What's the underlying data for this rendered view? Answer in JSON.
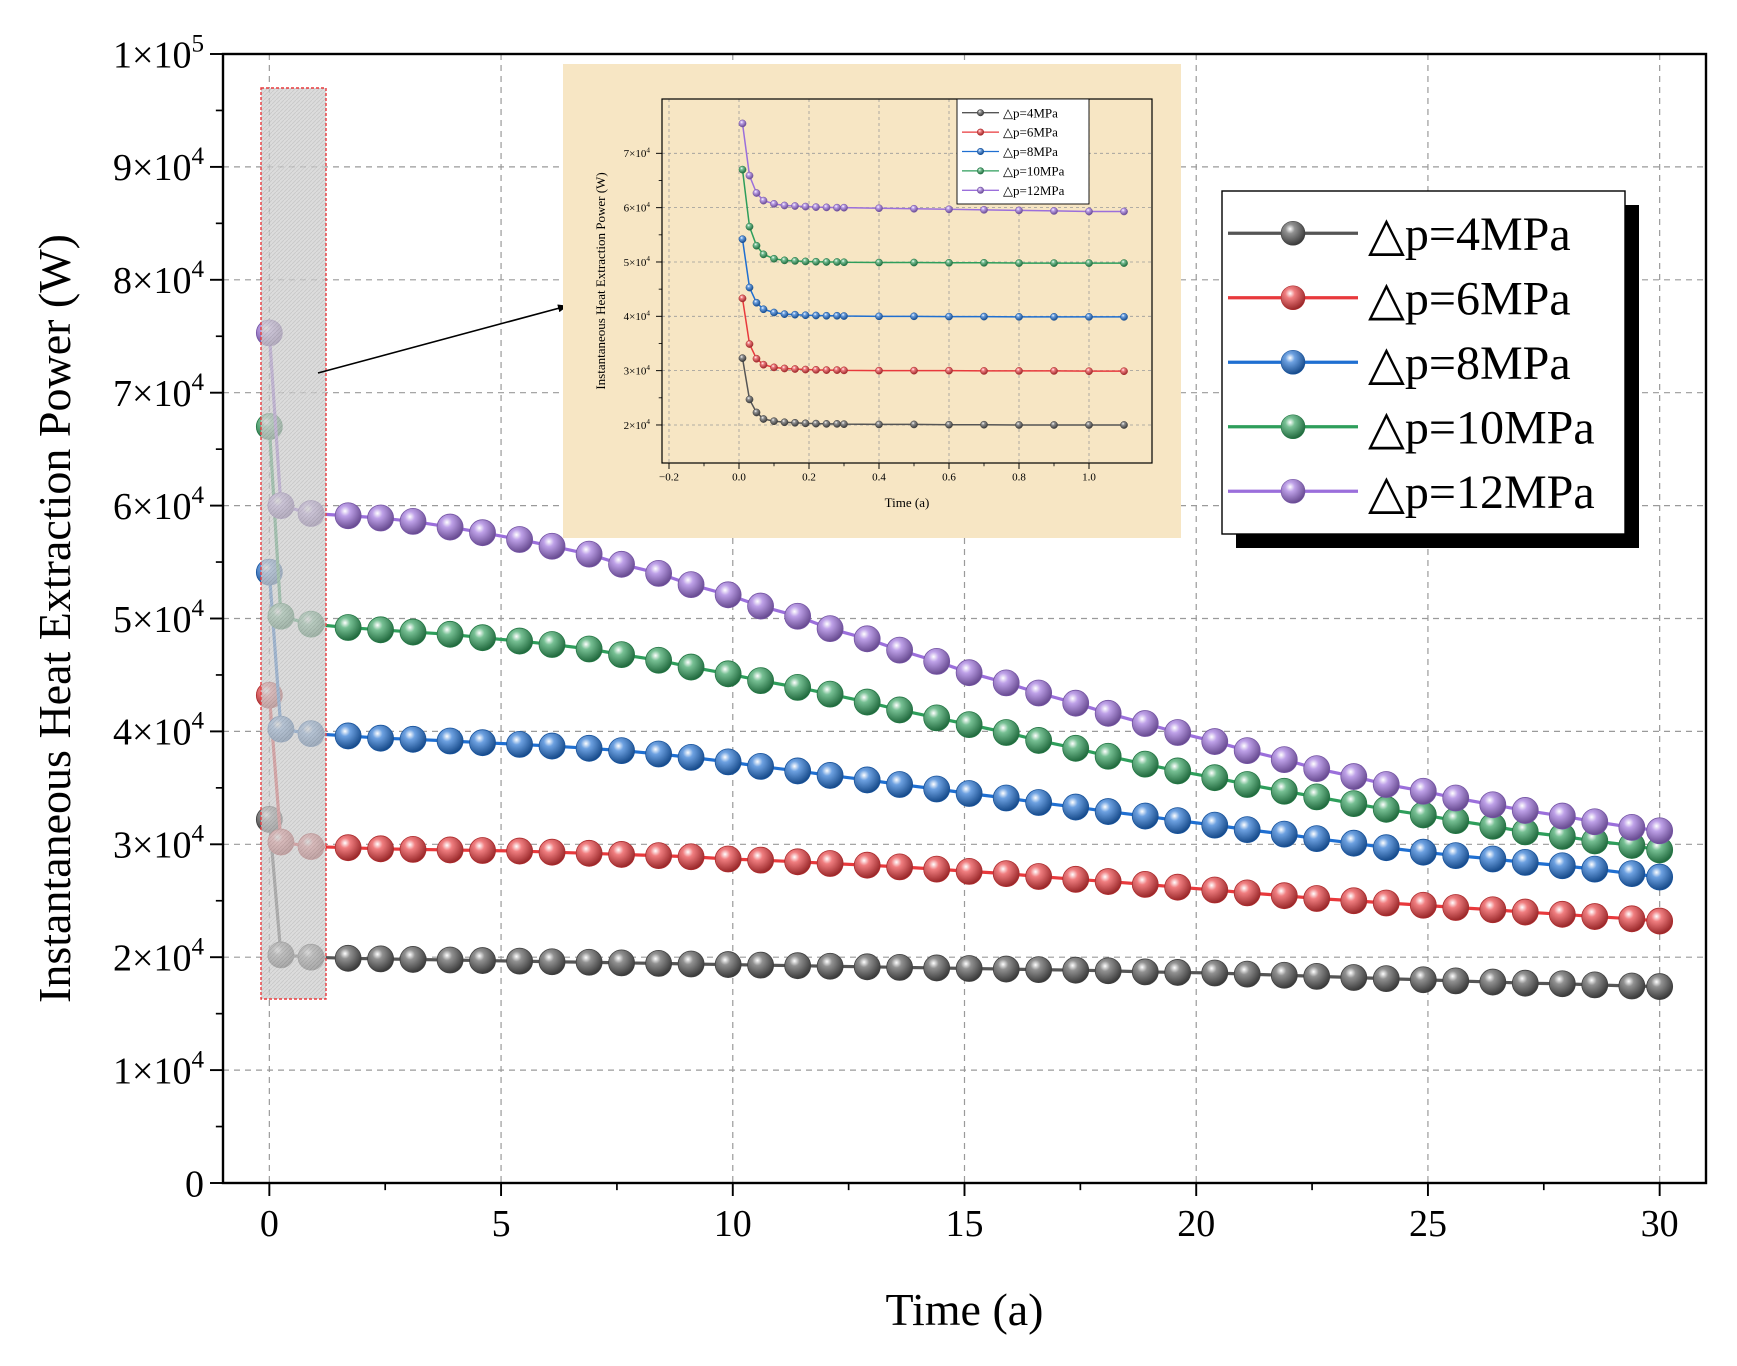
{
  "chart_data": [
    {
      "type": "line",
      "title": "",
      "xlabel": "Time (a)",
      "ylabel": "Instantaneous Heat Extraction Power (W)",
      "xlim": [
        -1,
        31
      ],
      "ylim": [
        0,
        100000
      ],
      "x_ticks": [
        "0",
        "5",
        "10",
        "15",
        "20",
        "25",
        "30"
      ],
      "y_ticks": [
        {
          "mant": "0",
          "exp": ""
        },
        {
          "mant": "1×10",
          "exp": "4"
        },
        {
          "mant": "2×10",
          "exp": "4"
        },
        {
          "mant": "3×10",
          "exp": "4"
        },
        {
          "mant": "4×10",
          "exp": "4"
        },
        {
          "mant": "5×10",
          "exp": "4"
        },
        {
          "mant": "6×10",
          "exp": "4"
        },
        {
          "mant": "7×10",
          "exp": "4"
        },
        {
          "mant": "8×10",
          "exp": "4"
        },
        {
          "mant": "9×10",
          "exp": "4"
        },
        {
          "mant": "1×10",
          "exp": "5"
        }
      ],
      "grid": true,
      "legend_position": "top-right",
      "x": [
        0,
        0.25,
        0.9,
        1.7,
        2.4,
        3.1,
        3.9,
        4.6,
        5.4,
        6.1,
        6.9,
        7.6,
        8.4,
        9.1,
        9.9,
        10.6,
        11.4,
        12.1,
        12.9,
        13.6,
        14.4,
        15.1,
        15.9,
        16.6,
        17.4,
        18.1,
        18.9,
        19.6,
        20.4,
        21.1,
        21.9,
        22.6,
        23.4,
        24.1,
        24.9,
        25.6,
        26.4,
        27.1,
        27.9,
        28.6,
        29.4,
        30
      ],
      "series": [
        {
          "name": "△p=4MPa",
          "color": "#555555",
          "values": [
            32200,
            20200,
            20000,
            19900,
            19850,
            19800,
            19750,
            19700,
            19650,
            19600,
            19550,
            19500,
            19450,
            19400,
            19350,
            19300,
            19250,
            19200,
            19150,
            19100,
            19050,
            19000,
            18950,
            18900,
            18850,
            18800,
            18700,
            18650,
            18600,
            18500,
            18400,
            18300,
            18200,
            18100,
            18000,
            17900,
            17800,
            17700,
            17650,
            17550,
            17450,
            17400
          ]
        },
        {
          "name": "△p=6MPa",
          "color": "#e8393c",
          "values": [
            43200,
            30200,
            29800,
            29700,
            29600,
            29550,
            29500,
            29450,
            29400,
            29300,
            29200,
            29100,
            29000,
            28900,
            28700,
            28600,
            28450,
            28300,
            28150,
            28000,
            27800,
            27600,
            27400,
            27150,
            26900,
            26700,
            26450,
            26200,
            25950,
            25700,
            25450,
            25200,
            25000,
            24800,
            24600,
            24400,
            24200,
            24000,
            23800,
            23600,
            23400,
            23200
          ]
        },
        {
          "name": "△p=8MPa",
          "color": "#1f6fd1",
          "values": [
            54100,
            40200,
            39800,
            39600,
            39400,
            39300,
            39150,
            39000,
            38850,
            38700,
            38500,
            38300,
            38000,
            37700,
            37300,
            36900,
            36500,
            36100,
            35700,
            35300,
            34900,
            34500,
            34100,
            33700,
            33300,
            32900,
            32500,
            32100,
            31700,
            31300,
            30900,
            30500,
            30100,
            29700,
            29300,
            29000,
            28700,
            28400,
            28100,
            27800,
            27400,
            27100
          ]
        },
        {
          "name": "△p=10MPa",
          "color": "#2e9e5b",
          "values": [
            67000,
            50200,
            49500,
            49200,
            49000,
            48800,
            48600,
            48300,
            48000,
            47700,
            47300,
            46800,
            46300,
            45700,
            45100,
            44500,
            43900,
            43300,
            42600,
            41900,
            41200,
            40600,
            39900,
            39200,
            38500,
            37800,
            37100,
            36500,
            35900,
            35300,
            34700,
            34200,
            33600,
            33100,
            32600,
            32100,
            31600,
            31100,
            30700,
            30300,
            29900,
            29500
          ]
        },
        {
          "name": "△p=12MPa",
          "color": "#9b6fdb",
          "values": [
            75300,
            60000,
            59300,
            59100,
            58900,
            58600,
            58100,
            57600,
            57000,
            56400,
            55700,
            54800,
            54000,
            53000,
            52100,
            51100,
            50200,
            49100,
            48200,
            47200,
            46200,
            45200,
            44300,
            43400,
            42500,
            41600,
            40700,
            39900,
            39100,
            38300,
            37500,
            36700,
            36000,
            35300,
            34700,
            34100,
            33500,
            33000,
            32500,
            32000,
            31500,
            31200
          ]
        }
      ]
    },
    {
      "type": "line",
      "title": "",
      "xlabel": "Time (a)",
      "ylabel": "Instantaneous Heat Extraction Power (W)",
      "xlim": [
        -0.22,
        1.18
      ],
      "ylim": [
        13000,
        80000
      ],
      "x_ticks": [
        "−0.2",
        "0.0",
        "0.2",
        "0.4",
        "0.6",
        "0.8",
        "1.0"
      ],
      "y_ticks": [
        {
          "mant": "2×10",
          "exp": "4"
        },
        {
          "mant": "3×10",
          "exp": "4"
        },
        {
          "mant": "4×10",
          "exp": "4"
        },
        {
          "mant": "5×10",
          "exp": "4"
        },
        {
          "mant": "6×10",
          "exp": "4"
        },
        {
          "mant": "7×10",
          "exp": "4"
        }
      ],
      "grid": true,
      "legend_position": "top-right",
      "x": [
        0.01,
        0.03,
        0.05,
        0.07,
        0.1,
        0.13,
        0.16,
        0.19,
        0.22,
        0.25,
        0.28,
        0.3,
        0.4,
        0.5,
        0.6,
        0.7,
        0.8,
        0.9,
        1.0,
        1.1
      ],
      "series": [
        {
          "name": "△p=4MPa",
          "color": "#555555",
          "values": [
            32300,
            24700,
            22300,
            21100,
            20700,
            20500,
            20400,
            20300,
            20250,
            20200,
            20200,
            20150,
            20100,
            20100,
            20050,
            20050,
            20000,
            20000,
            20000,
            20000
          ]
        },
        {
          "name": "△p=6MPa",
          "color": "#e8393c",
          "values": [
            43300,
            34900,
            32200,
            31100,
            30600,
            30400,
            30300,
            30200,
            30150,
            30100,
            30100,
            30050,
            30000,
            30000,
            30000,
            29950,
            29950,
            29950,
            29900,
            29900
          ]
        },
        {
          "name": "△p=8MPa",
          "color": "#1f6fd1",
          "values": [
            54200,
            45300,
            42500,
            41300,
            40700,
            40400,
            40300,
            40200,
            40150,
            40100,
            40100,
            40050,
            40000,
            40000,
            39950,
            39950,
            39900,
            39900,
            39900,
            39900
          ]
        },
        {
          "name": "△p=10MPa",
          "color": "#2e9e5b",
          "values": [
            67000,
            56500,
            53000,
            51400,
            50600,
            50300,
            50200,
            50100,
            50050,
            50000,
            50000,
            49950,
            49900,
            49900,
            49850,
            49850,
            49800,
            49800,
            49800,
            49800
          ]
        },
        {
          "name": "△p=12MPa",
          "color": "#9b6fdb",
          "values": [
            75500,
            65900,
            62700,
            61300,
            60700,
            60400,
            60300,
            60200,
            60100,
            60050,
            60000,
            60000,
            59900,
            59800,
            59700,
            59600,
            59500,
            59400,
            59300,
            59300
          ]
        }
      ]
    }
  ]
}
